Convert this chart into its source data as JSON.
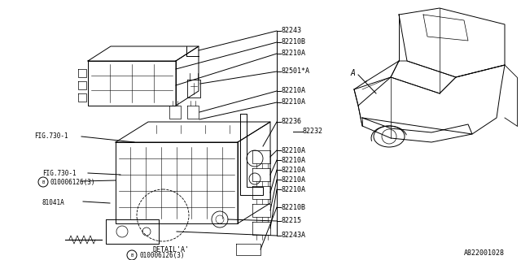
{
  "bg_color": "#ffffff",
  "line_color": "#000000",
  "text_color": "#000000",
  "diagram_id": "A822001028",
  "right_labels": [
    "82243",
    "82210B",
    "82210A",
    "82501*A",
    "82210A",
    "82210A",
    "82236",
    "82210A",
    "82210A",
    "82210A",
    "82210A",
    "82210A",
    "82210B",
    "82215",
    "82243A"
  ],
  "label_82232": "82232",
  "label_A": "A",
  "fig_size": [
    6.4,
    3.2
  ],
  "dpi": 100
}
